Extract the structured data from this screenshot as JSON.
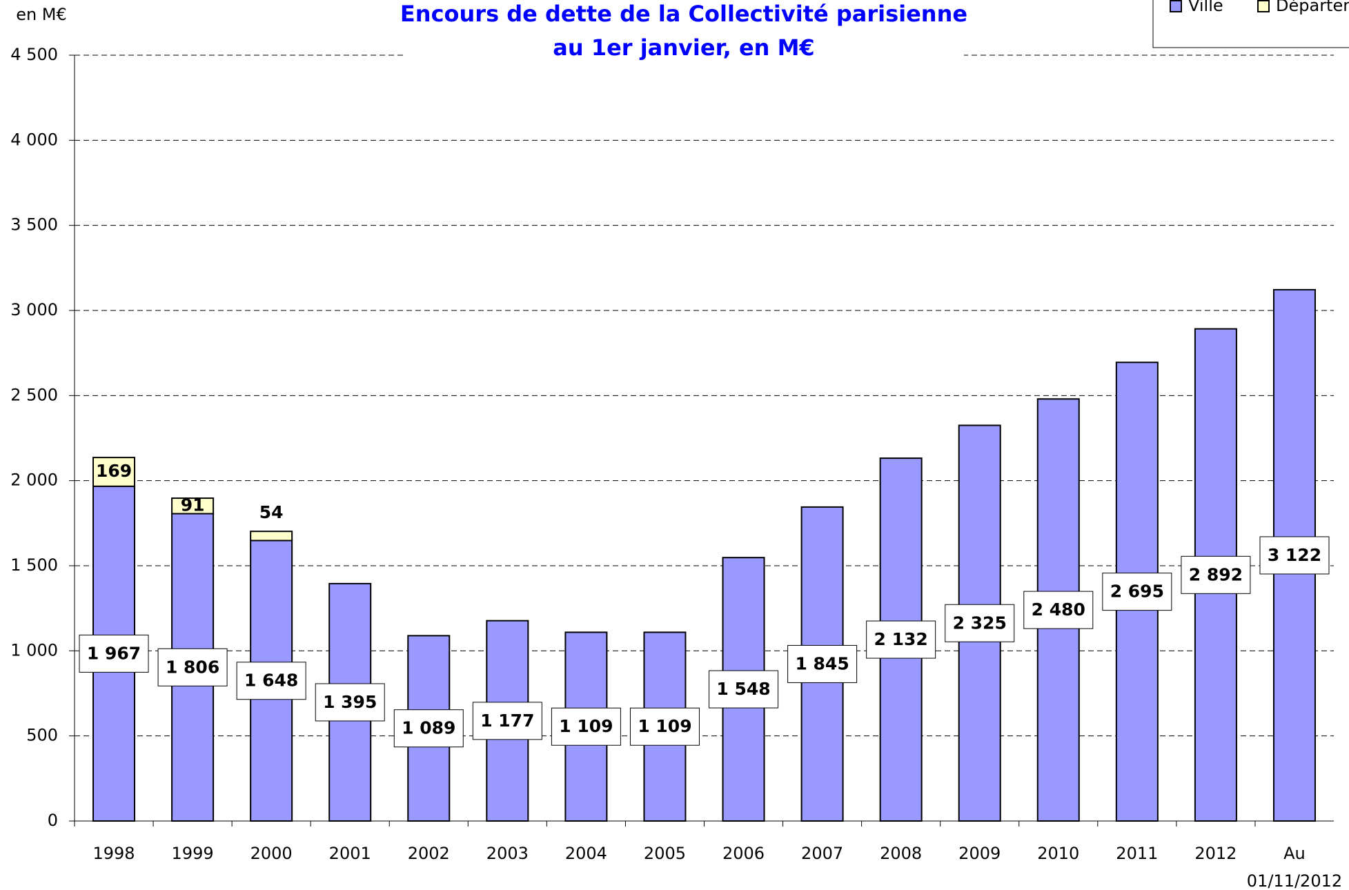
{
  "chart_data": {
    "type": "stacked_bar",
    "title": [
      "Encours de dette de la Collectivité parisienne",
      "au 1er janvier, en M€"
    ],
    "y_label": "en M€",
    "categories": [
      "1998",
      "1999",
      "2000",
      "2001",
      "2002",
      "2003",
      "2004",
      "2005",
      "2006",
      "2007",
      "2008",
      "2009",
      "2010",
      "2011",
      "2012",
      [
        "Au",
        "01/11/2012"
      ]
    ],
    "series": [
      {
        "name": "Ville",
        "color": "#9999ff",
        "values": [
          1967,
          1806,
          1648,
          1395,
          1089,
          1177,
          1109,
          1109,
          1548,
          1845,
          2132,
          2325,
          2480,
          2695,
          2892,
          3122
        ],
        "value_labels": [
          "1 967",
          "1 806",
          "1 648",
          "1 395",
          "1 089",
          "1 177",
          "1 109",
          "1 109",
          "1 548",
          "1 845",
          "2 132",
          "2 325",
          "2 480",
          "2 695",
          "2 892",
          "3 122"
        ]
      },
      {
        "name": "Département",
        "color": "#ffffcc",
        "values": [
          169,
          91,
          54,
          null,
          null,
          null,
          null,
          null,
          null,
          null,
          null,
          null,
          null,
          null,
          null,
          null
        ]
      }
    ],
    "ylim": [
      0,
      4500
    ],
    "yticks": [
      0,
      500,
      {
        "value": 1000,
        "label": "1 000"
      },
      {
        "value": 1500,
        "label": "1 500"
      },
      {
        "value": 2000,
        "label": "2 000"
      },
      {
        "value": 2500,
        "label": "2 500"
      },
      {
        "value": 3000,
        "label": "3 000"
      },
      {
        "value": 3500,
        "label": "3 500"
      },
      {
        "value": 4000,
        "label": "4 000"
      },
      {
        "value": 4500,
        "label": "4 500"
      }
    ],
    "grid": true,
    "legend": "top-right"
  }
}
